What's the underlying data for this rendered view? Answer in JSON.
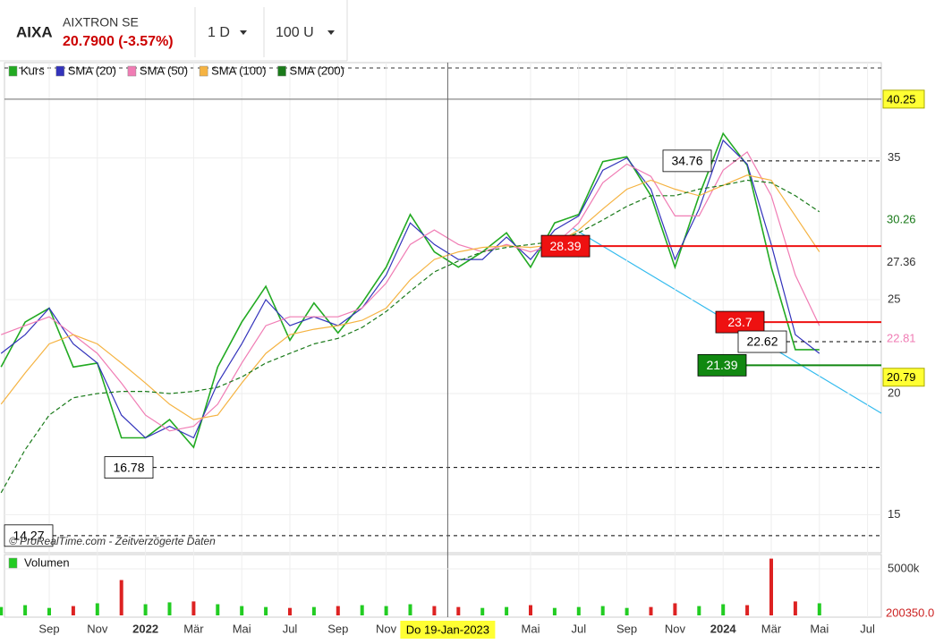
{
  "header": {
    "symbol": "AIXA",
    "name": "AIXTRON SE",
    "quote": "20.7900 (-3.57%)",
    "interval": "1 D",
    "units": "100 U"
  },
  "chart_data": {
    "type": "stock",
    "log_scale": true,
    "legend": [
      {
        "name": "Kurs",
        "color": "#22aa22"
      },
      {
        "name": "SMA (20)",
        "color": "#3333bb"
      },
      {
        "name": "SMA (50)",
        "color": "#f07cb4"
      },
      {
        "name": "SMA (100)",
        "color": "#f5b342"
      },
      {
        "name": "SMA (200)",
        "color": "#1a7a1a"
      }
    ],
    "x": [
      "2021-07",
      "2021-08",
      "2021-09",
      "2021-10",
      "2021-11",
      "2021-12",
      "2022-01",
      "2022-02",
      "2022-03",
      "2022-04",
      "2022-05",
      "2022-06",
      "2022-07",
      "2022-08",
      "2022-09",
      "2022-10",
      "2022-11",
      "2022-12",
      "2023-01",
      "2023-02",
      "2023-03",
      "2023-04",
      "2023-05",
      "2023-06",
      "2023-07",
      "2023-08",
      "2023-09",
      "2023-10",
      "2023-11",
      "2023-12",
      "2024-01",
      "2024-02",
      "2024-03",
      "2024-04",
      "2024-05",
      "2024-06",
      "2024-07"
    ],
    "series": [
      {
        "name": "Kurs",
        "color": "#22aa22",
        "values": [
          21.3,
          23.7,
          24.5,
          21.3,
          21.5,
          18.0,
          18.0,
          18.8,
          17.6,
          21.3,
          23.7,
          25.8,
          22.7,
          24.8,
          23.1,
          24.8,
          27.0,
          30.6,
          28.0,
          27.0,
          28.0,
          29.3,
          27.0,
          30.0,
          30.6,
          34.7,
          35.1,
          32.0,
          27.0,
          32.0,
          37.1,
          34.4,
          27.0,
          22.2,
          22.2,
          null,
          null
        ]
      },
      {
        "name": "SMA (20)",
        "color": "#3333bb",
        "values": [
          22,
          23,
          24.5,
          22.5,
          21.5,
          19,
          18,
          18.5,
          18,
          20.5,
          22.5,
          25,
          23.5,
          24,
          23.5,
          24.5,
          26.5,
          30,
          28.5,
          27.5,
          27.5,
          29,
          27.5,
          29.5,
          30.5,
          34,
          35,
          32.5,
          27.5,
          31,
          36.5,
          34.5,
          28.5,
          23,
          22,
          null,
          null
        ]
      },
      {
        "name": "SMA (50)",
        "color": "#f07cb4",
        "values": [
          23,
          23.5,
          24,
          23,
          22,
          20.5,
          19,
          18.3,
          18.5,
          19.5,
          21.5,
          23.5,
          24,
          24,
          24,
          24.5,
          26,
          28.5,
          29.5,
          28.5,
          28,
          28.5,
          28,
          28.5,
          30,
          33,
          34.5,
          33.5,
          30.5,
          30.5,
          34,
          35.5,
          32,
          26.5,
          23.5,
          null,
          null
        ]
      },
      {
        "name": "SMA (100)",
        "color": "#f5b342",
        "values": [
          19.5,
          21,
          22.5,
          23,
          22.5,
          21.5,
          20.5,
          19.5,
          18.8,
          19,
          20.5,
          22,
          23,
          23.3,
          23.5,
          23.8,
          24.5,
          26.2,
          27.5,
          28,
          28.3,
          28.4,
          28.3,
          28.5,
          29.5,
          31,
          32.5,
          33.2,
          32.5,
          32,
          32.8,
          33.6,
          33.2,
          30.5,
          28,
          null,
          null
        ]
      },
      {
        "name": "SMA (200)",
        "color": "#1a7a1a",
        "dashed": true,
        "values": [
          15.8,
          17.5,
          19,
          19.8,
          20,
          20.1,
          20.1,
          20,
          20.1,
          20.3,
          20.8,
          21.5,
          22,
          22.5,
          22.8,
          23.4,
          24.3,
          25.5,
          26.7,
          27.4,
          28,
          28.3,
          28.5,
          28.7,
          29.3,
          30.2,
          31.2,
          32,
          32,
          32.5,
          32.8,
          33.2,
          33,
          32,
          30.8,
          null,
          null
        ]
      }
    ],
    "ylim": [
      13.7,
      43.9
    ],
    "yticks": [
      15,
      20,
      25,
      35
    ],
    "xticks": [
      {
        "value": "2021-09",
        "label": "Sep"
      },
      {
        "value": "2021-11",
        "label": "Nov"
      },
      {
        "value": "2022-01",
        "label": "2022"
      },
      {
        "value": "2022-03",
        "label": "Mär"
      },
      {
        "value": "2022-05",
        "label": "Mai"
      },
      {
        "value": "2022-07",
        "label": "Jul"
      },
      {
        "value": "2022-09",
        "label": "Sep"
      },
      {
        "value": "2022-11",
        "label": "Nov"
      },
      {
        "value": "2023-05",
        "label": "Mai"
      },
      {
        "value": "2023-07",
        "label": "Jul"
      },
      {
        "value": "2023-09",
        "label": "Sep"
      },
      {
        "value": "2023-11",
        "label": "Nov"
      },
      {
        "value": "2024-01",
        "label": "2024"
      },
      {
        "value": "2024-03",
        "label": "Mär"
      },
      {
        "value": "2024-05",
        "label": "Mai"
      },
      {
        "value": "2024-07",
        "label": "Jul"
      }
    ],
    "cursor": {
      "x": "2023-01",
      "label": "Do 19-Jan-2023"
    },
    "price_labels": [
      {
        "value": 40.25,
        "bg": "#ffff33",
        "fg": "#000"
      },
      {
        "value": 30.26,
        "bg": "none",
        "fg": "#1a7a1a"
      },
      {
        "value": 27.36,
        "bg": "none",
        "fg": "#333"
      },
      {
        "value": 22.81,
        "bg": "none",
        "fg": "#f07cb4"
      },
      {
        "value": 20.79,
        "bg": "#ffff33",
        "fg": "#000"
      }
    ],
    "levels": [
      {
        "value": 34.76,
        "color": "#000",
        "dashed": true,
        "bg": "#fff",
        "fg": "#000"
      },
      {
        "value": 28.39,
        "color": "#ee1111",
        "dashed": false,
        "bg": "#ee1111",
        "fg": "#fff"
      },
      {
        "value": 23.7,
        "color": "#ee1111",
        "dashed": false,
        "bg": "#ee1111",
        "fg": "#fff"
      },
      {
        "value": 22.62,
        "color": "#000",
        "dashed": true,
        "bg": "#fff",
        "fg": "#000"
      },
      {
        "value": 21.39,
        "color": "#118811",
        "dashed": false,
        "bg": "#118811",
        "fg": "#fff"
      },
      {
        "value": 16.78,
        "color": "#000",
        "dashed": true,
        "bg": "#fff",
        "fg": "#000"
      },
      {
        "value": 14.27,
        "color": "#000",
        "dashed": true,
        "bg": "#fff",
        "fg": "#000"
      }
    ],
    "watermark": "© ProRealTime.com - Zeitverzögerte Daten",
    "volume": {
      "name": "Volumen",
      "color": "#22cc22",
      "down_color": "#dd2222",
      "values": [
        900000,
        1100000,
        800000,
        1000000,
        1300000,
        3800000,
        1200000,
        1400000,
        1500000,
        1200000,
        1000000,
        900000,
        800000,
        900000,
        1000000,
        1100000,
        1000000,
        1200000,
        1000000,
        900000,
        800000,
        900000,
        1100000,
        800000,
        900000,
        1000000,
        800000,
        900000,
        1300000,
        1000000,
        1200000,
        1100000,
        6100000,
        1500000,
        1300000,
        null,
        null
      ],
      "ylim": [
        0,
        6540000
      ],
      "yticks": [
        {
          "value": 5000000,
          "label": "5000k"
        }
      ],
      "last": {
        "value": 200350,
        "label": "200350.0"
      }
    }
  }
}
